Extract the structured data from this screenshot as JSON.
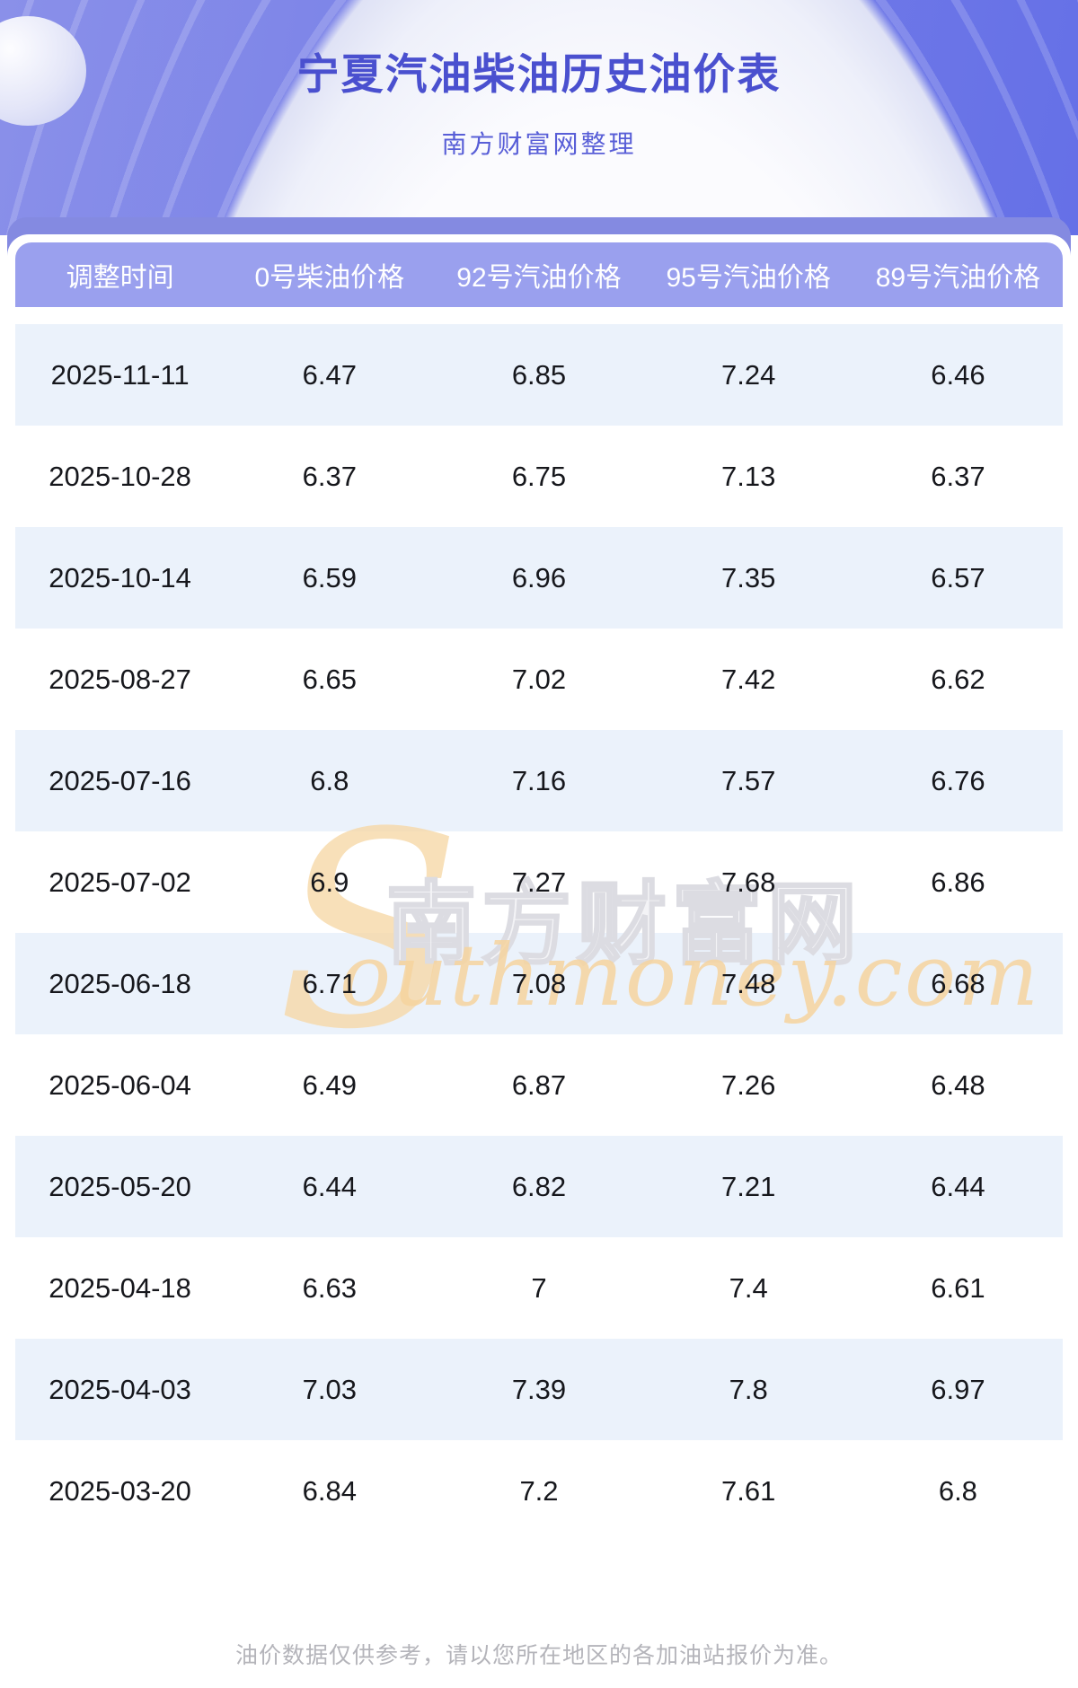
{
  "page": {
    "title": "宁夏汽油柴油历史油价表",
    "subtitle": "南方财富网整理",
    "footnote": "油价数据仅供参考，请以您所在地区的各加油站报价为准。"
  },
  "chart_data": {
    "type": "table",
    "title": "宁夏汽油柴油历史油价表",
    "subtitle": "南方财富网整理",
    "columns": [
      "调整时间",
      "0号柴油价格",
      "92号汽油价格",
      "95号汽油价格",
      "89号汽油价格"
    ],
    "rows": [
      [
        "2025-11-11",
        "6.47",
        "6.85",
        "7.24",
        "6.46"
      ],
      [
        "2025-10-28",
        "6.37",
        "6.75",
        "7.13",
        "6.37"
      ],
      [
        "2025-10-14",
        "6.59",
        "6.96",
        "7.35",
        "6.57"
      ],
      [
        "2025-08-27",
        "6.65",
        "7.02",
        "7.42",
        "6.62"
      ],
      [
        "2025-07-16",
        "6.8",
        "7.16",
        "7.57",
        "6.76"
      ],
      [
        "2025-07-02",
        "6.9",
        "7.27",
        "7.68",
        "6.86"
      ],
      [
        "2025-06-18",
        "6.71",
        "7.08",
        "7.48",
        "6.68"
      ],
      [
        "2025-06-04",
        "6.49",
        "6.87",
        "7.26",
        "6.48"
      ],
      [
        "2025-05-20",
        "6.44",
        "6.82",
        "7.21",
        "6.44"
      ],
      [
        "2025-04-18",
        "6.63",
        "7",
        "7.4",
        "6.61"
      ],
      [
        "2025-04-03",
        "7.03",
        "7.39",
        "7.8",
        "6.97"
      ],
      [
        "2025-03-20",
        "6.84",
        "7.2",
        "7.61",
        "6.8"
      ]
    ]
  },
  "watermark": {
    "cn": "南方财富网",
    "en_initial": "S",
    "en_rest": "outhmoney.com"
  },
  "colors": {
    "hero_purple": "#6d76e8",
    "card_back": "#848ae1",
    "header_row_bg": "#9aa0ee",
    "zebra_row_bg": "#ebf2fb",
    "title_text": "#4a50cf",
    "watermark_orange": "#f6d49f"
  }
}
